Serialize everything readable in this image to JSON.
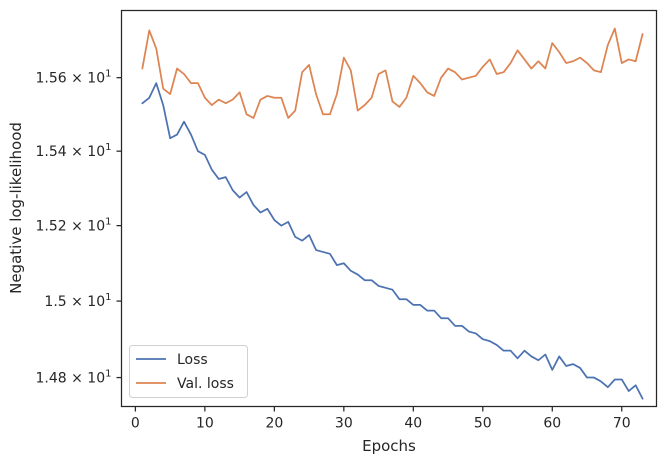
{
  "chart_data": {
    "type": "line",
    "xlabel": "Epochs",
    "ylabel": "Negative log-likelihood",
    "xlim": [
      -2,
      75
    ],
    "ylim": [
      14.725,
      15.785
    ],
    "y_scale": "log",
    "grid": false,
    "legend_position": "lower-left",
    "x_ticks": [
      0,
      10,
      20,
      30,
      40,
      50,
      60,
      70
    ],
    "x_tick_labels": [
      "0",
      "10",
      "20",
      "30",
      "40",
      "50",
      "60",
      "70"
    ],
    "y_ticks": [
      14.8,
      15.0,
      15.2,
      15.4,
      15.6
    ],
    "y_tick_labels": [
      {
        "base": "1.48",
        "mul": "×",
        "pow": "10",
        "exp": "1"
      },
      {
        "base": "1.5",
        "mul": "×",
        "pow": "10",
        "exp": "1"
      },
      {
        "base": "1.52",
        "mul": "×",
        "pow": "10",
        "exp": "1"
      },
      {
        "base": "1.54",
        "mul": "×",
        "pow": "10",
        "exp": "1"
      },
      {
        "base": "1.56",
        "mul": "×",
        "pow": "10",
        "exp": "1"
      }
    ],
    "x": [
      1,
      2,
      3,
      4,
      5,
      6,
      7,
      8,
      9,
      10,
      11,
      12,
      13,
      14,
      15,
      16,
      17,
      18,
      19,
      20,
      21,
      22,
      23,
      24,
      25,
      26,
      27,
      28,
      29,
      30,
      31,
      32,
      33,
      34,
      35,
      36,
      37,
      38,
      39,
      40,
      41,
      42,
      43,
      44,
      45,
      46,
      47,
      48,
      49,
      50,
      51,
      52,
      53,
      54,
      55,
      56,
      57,
      58,
      59,
      60,
      61,
      62,
      63,
      64,
      65,
      66,
      67,
      68,
      69,
      70,
      71,
      72,
      73
    ],
    "series": [
      {
        "name": "Loss",
        "color": "#4c72b0",
        "values": [
          15.53,
          15.545,
          15.585,
          15.525,
          15.435,
          15.445,
          15.48,
          15.445,
          15.4,
          15.39,
          15.35,
          15.325,
          15.33,
          15.295,
          15.275,
          15.29,
          15.255,
          15.235,
          15.245,
          15.215,
          15.2,
          15.21,
          15.17,
          15.16,
          15.175,
          15.135,
          15.13,
          15.125,
          15.095,
          15.1,
          15.08,
          15.07,
          15.055,
          15.055,
          15.04,
          15.035,
          15.03,
          15.005,
          15.005,
          14.99,
          14.99,
          14.975,
          14.975,
          14.955,
          14.955,
          14.935,
          14.935,
          14.92,
          14.915,
          14.9,
          14.895,
          14.885,
          14.87,
          14.87,
          14.85,
          14.87,
          14.855,
          14.845,
          14.86,
          14.82,
          14.855,
          14.83,
          14.835,
          14.825,
          14.8,
          14.8,
          14.79,
          14.775,
          14.795,
          14.795,
          14.765,
          14.78,
          14.745
        ]
      },
      {
        "name": "Val. loss",
        "color": "#dd8452",
        "values": [
          15.625,
          15.73,
          15.68,
          15.57,
          15.555,
          15.625,
          15.61,
          15.585,
          15.585,
          15.545,
          15.525,
          15.54,
          15.53,
          15.54,
          15.56,
          15.5,
          15.49,
          15.54,
          15.55,
          15.545,
          15.545,
          15.49,
          15.51,
          15.615,
          15.635,
          15.555,
          15.5,
          15.5,
          15.555,
          15.655,
          15.62,
          15.51,
          15.525,
          15.545,
          15.61,
          15.62,
          15.535,
          15.52,
          15.545,
          15.605,
          15.585,
          15.56,
          15.55,
          15.6,
          15.625,
          15.615,
          15.595,
          15.6,
          15.605,
          15.63,
          15.65,
          15.61,
          15.615,
          15.64,
          15.675,
          15.65,
          15.625,
          15.645,
          15.625,
          15.695,
          15.67,
          15.64,
          15.645,
          15.655,
          15.64,
          15.62,
          15.615,
          15.69,
          15.735,
          15.64,
          15.65,
          15.645,
          15.72
        ]
      }
    ]
  }
}
